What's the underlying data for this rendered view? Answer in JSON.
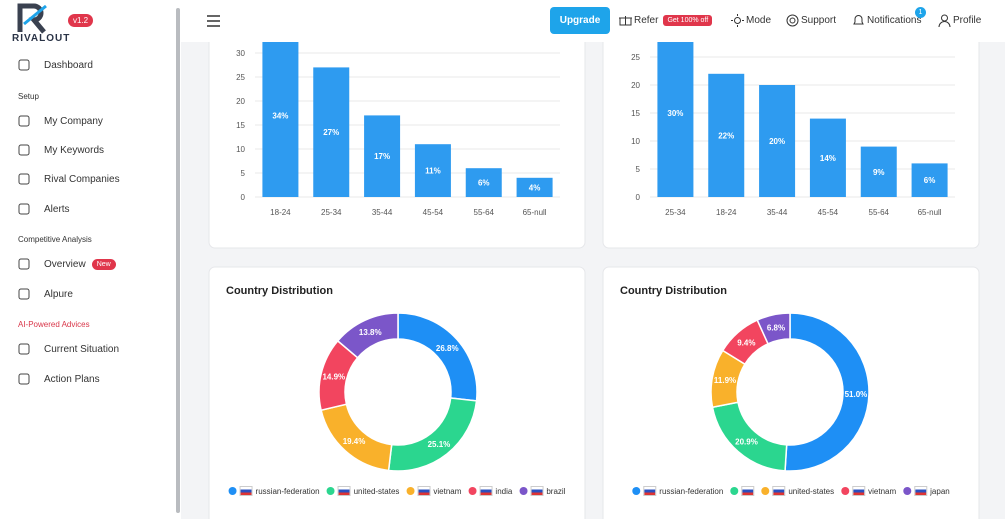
{
  "brand": {
    "name": "RIVALOUT",
    "version": "v1.2"
  },
  "sidebar": {
    "entries": [
      {
        "kind": "item",
        "label": "Dashboard"
      },
      {
        "kind": "section",
        "label": "Setup"
      },
      {
        "kind": "item",
        "label": "My Company"
      },
      {
        "kind": "item",
        "label": "My Keywords"
      },
      {
        "kind": "item",
        "label": "Rival Companies"
      },
      {
        "kind": "item",
        "label": "Alerts"
      },
      {
        "kind": "section",
        "label": "Competitive Analysis"
      },
      {
        "kind": "item",
        "label": "Overview",
        "badge": "New"
      },
      {
        "kind": "item",
        "label": "Alpure"
      },
      {
        "kind": "section",
        "label": "AI-Powered Advices",
        "accent": true
      },
      {
        "kind": "item",
        "label": "Current Situation"
      },
      {
        "kind": "item",
        "label": "Action Plans"
      }
    ]
  },
  "header": {
    "upgrade": "Upgrade",
    "refer": "Refer",
    "refer_badge": "Get 100% off",
    "mode": "Mode",
    "support": "Support",
    "notifications": "Notifications",
    "notification_count": 1,
    "profile": "Profile"
  },
  "charts": [
    {
      "type": "bar",
      "color": "#2e9bf0",
      "categories": [
        "18-24",
        "25-34",
        "35-44",
        "45-54",
        "55-64",
        "65-null"
      ],
      "values": [
        34,
        27,
        17,
        11,
        6,
        4
      ],
      "value_labels": [
        "34%",
        "27%",
        "17%",
        "11%",
        "6%",
        "4%"
      ],
      "ylim": [
        0,
        35
      ],
      "yticks": [
        0,
        5,
        10,
        15,
        20,
        25,
        30
      ],
      "grid": true
    },
    {
      "type": "bar",
      "color": "#2e9bf0",
      "categories": [
        "25-34",
        "18-24",
        "35-44",
        "45-54",
        "55-64",
        "65-null"
      ],
      "values": [
        30,
        22,
        20,
        14,
        9,
        6
      ],
      "value_labels": [
        "30%",
        "22%",
        "20%",
        "14%",
        "9%",
        "6%"
      ],
      "ylim": [
        0,
        30
      ],
      "yticks": [
        0,
        5,
        10,
        15,
        20,
        25
      ],
      "grid": true
    },
    {
      "type": "donut",
      "title": "Country Distribution",
      "categories": [
        "russian-federation",
        "united-states",
        "vietnam",
        "india",
        "brazil"
      ],
      "values": [
        26.8,
        25.1,
        19.4,
        14.9,
        13.8
      ],
      "value_labels": [
        "26.8%",
        "25.1%",
        "19.4%",
        "14.9%",
        "13.8%"
      ],
      "colors": [
        "#1e8ff5",
        "#2bd68f",
        "#f9b12b",
        "#f2455f",
        "#7b56c9"
      ]
    },
    {
      "type": "donut",
      "title": "Country Distribution",
      "categories": [
        "russian-federation",
        null,
        "united-states",
        "vietnam",
        "japan"
      ],
      "values": [
        51.0,
        20.9,
        11.9,
        9.4,
        6.8
      ],
      "value_labels": [
        "51.0%",
        "20.9%",
        "11.9%",
        "9.4%",
        "6.8%"
      ],
      "colors": [
        "#1e8ff5",
        "#2bd68f",
        "#f9b12b",
        "#f2455f",
        "#7b56c9"
      ]
    }
  ]
}
